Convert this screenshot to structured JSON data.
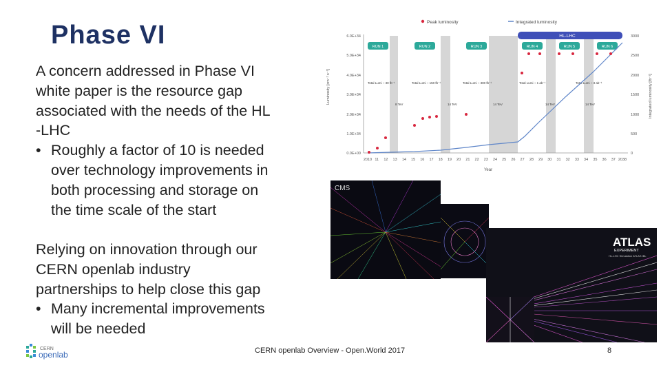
{
  "slide": {
    "title": "Phase VI",
    "para1_lines": [
      "A concern addressed in Phase VI",
      "white paper is the resource gap",
      "associated with the needs of the HL",
      "-LHC"
    ],
    "bullet1_lines": [
      "Roughly a factor of 10 is needed",
      "over technology improvements in",
      "both processing and storage on",
      "the time scale of the start"
    ],
    "para2_lines": [
      "Relying on innovation through our",
      "CERN openlab industry",
      "partnerships to help close this gap"
    ],
    "bullet2_lines": [
      "Many incremental improvements",
      "will be needed"
    ],
    "bullet_char": "•"
  },
  "chart": {
    "legend_peak": "Peak luminosity",
    "legend_integrated": "Integrated luminosity",
    "hl_lhc_label": "HL-LHC",
    "runs": [
      "RUN 1",
      "RUN 2",
      "RUN 3",
      "RUN 4",
      "RUN 5",
      "RUN 6"
    ],
    "xlabel": "Year",
    "ylabel_left": "Luminosity [cm⁻² s⁻¹]",
    "ylabel_right": "Integrated luminosity [fb⁻¹]",
    "left_ticks": [
      "6.0E+34",
      "5.0E+34",
      "4.0E+34",
      "3.0E+34",
      "2.0E+34",
      "1.0E+34",
      "0.0E+00"
    ],
    "right_ticks": [
      "3000",
      "2500",
      "2000",
      "1500",
      "1000",
      "500",
      "0"
    ],
    "year_ticks": [
      "2010",
      "11",
      "12",
      "13",
      "14",
      "15",
      "16",
      "17",
      "18",
      "19",
      "20",
      "21",
      "22",
      "23",
      "24",
      "25",
      "26",
      "27",
      "28",
      "29",
      "30",
      "31",
      "32",
      "33",
      "34",
      "35",
      "36",
      "37",
      "2038"
    ],
    "energy_labels": [
      "8 TeV",
      "14 TeV",
      "14 TeV",
      "14 TeV",
      "14 TeV"
    ],
    "annotations": [
      "Total Lumi ~ 30 fb⁻¹",
      "Total Lumi ~ 150 fb⁻¹",
      "Total Lumi ~ 300 fb⁻¹",
      "Total Lumi ~ 1 ab⁻¹",
      "Total Lumi ~ 3 ab⁻¹"
    ],
    "colors": {
      "run_box": "#2ca99a",
      "hl_bar": "#3f4fb8",
      "peak": "#d8273f",
      "integrated": "#5f86c9",
      "shutdown": "#d6d6d6"
    }
  },
  "images": {
    "cms_label": "CMS",
    "atlas_logo": "ATLAS",
    "atlas_sub": "EXPERIMENT",
    "atlas_caption": "HL-LHC Simulation ATLAS IBL"
  },
  "footer": {
    "logo_top": "CERN",
    "logo_bottom": "openlab",
    "center": "CERN openlab Overview - Open.World 2017",
    "page": "8"
  }
}
